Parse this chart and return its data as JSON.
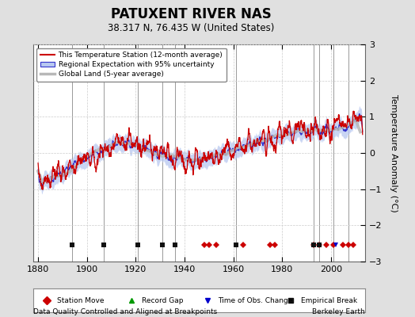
{
  "title": "PATUXENT RIVER NAS",
  "subtitle": "38.317 N, 76.435 W (United States)",
  "ylabel": "Temperature Anomaly (°C)",
  "xlabel_left": "Data Quality Controlled and Aligned at Breakpoints",
  "xlabel_right": "Berkeley Earth",
  "ylim": [
    -3,
    3
  ],
  "xlim": [
    1878,
    2014
  ],
  "yticks": [
    -3,
    -2,
    -1,
    0,
    1,
    2,
    3
  ],
  "xticks": [
    1880,
    1900,
    1920,
    1940,
    1960,
    1980,
    2000
  ],
  "background_color": "#e0e0e0",
  "plot_bg_color": "#ffffff",
  "station_moves": [
    1948,
    1950,
    1953,
    1964,
    1975,
    1977,
    1993,
    1995,
    1998,
    2001,
    2005,
    2007,
    2009
  ],
  "record_gaps": [],
  "obs_changes": [
    2002
  ],
  "empirical_breaks": [
    1894,
    1907,
    1921,
    1931,
    1936,
    1961,
    1993,
    1995
  ],
  "vertical_lines": [
    1894,
    1907,
    1921,
    1931,
    1936,
    1961,
    1993,
    1995,
    2001,
    2007
  ],
  "seed": 17
}
